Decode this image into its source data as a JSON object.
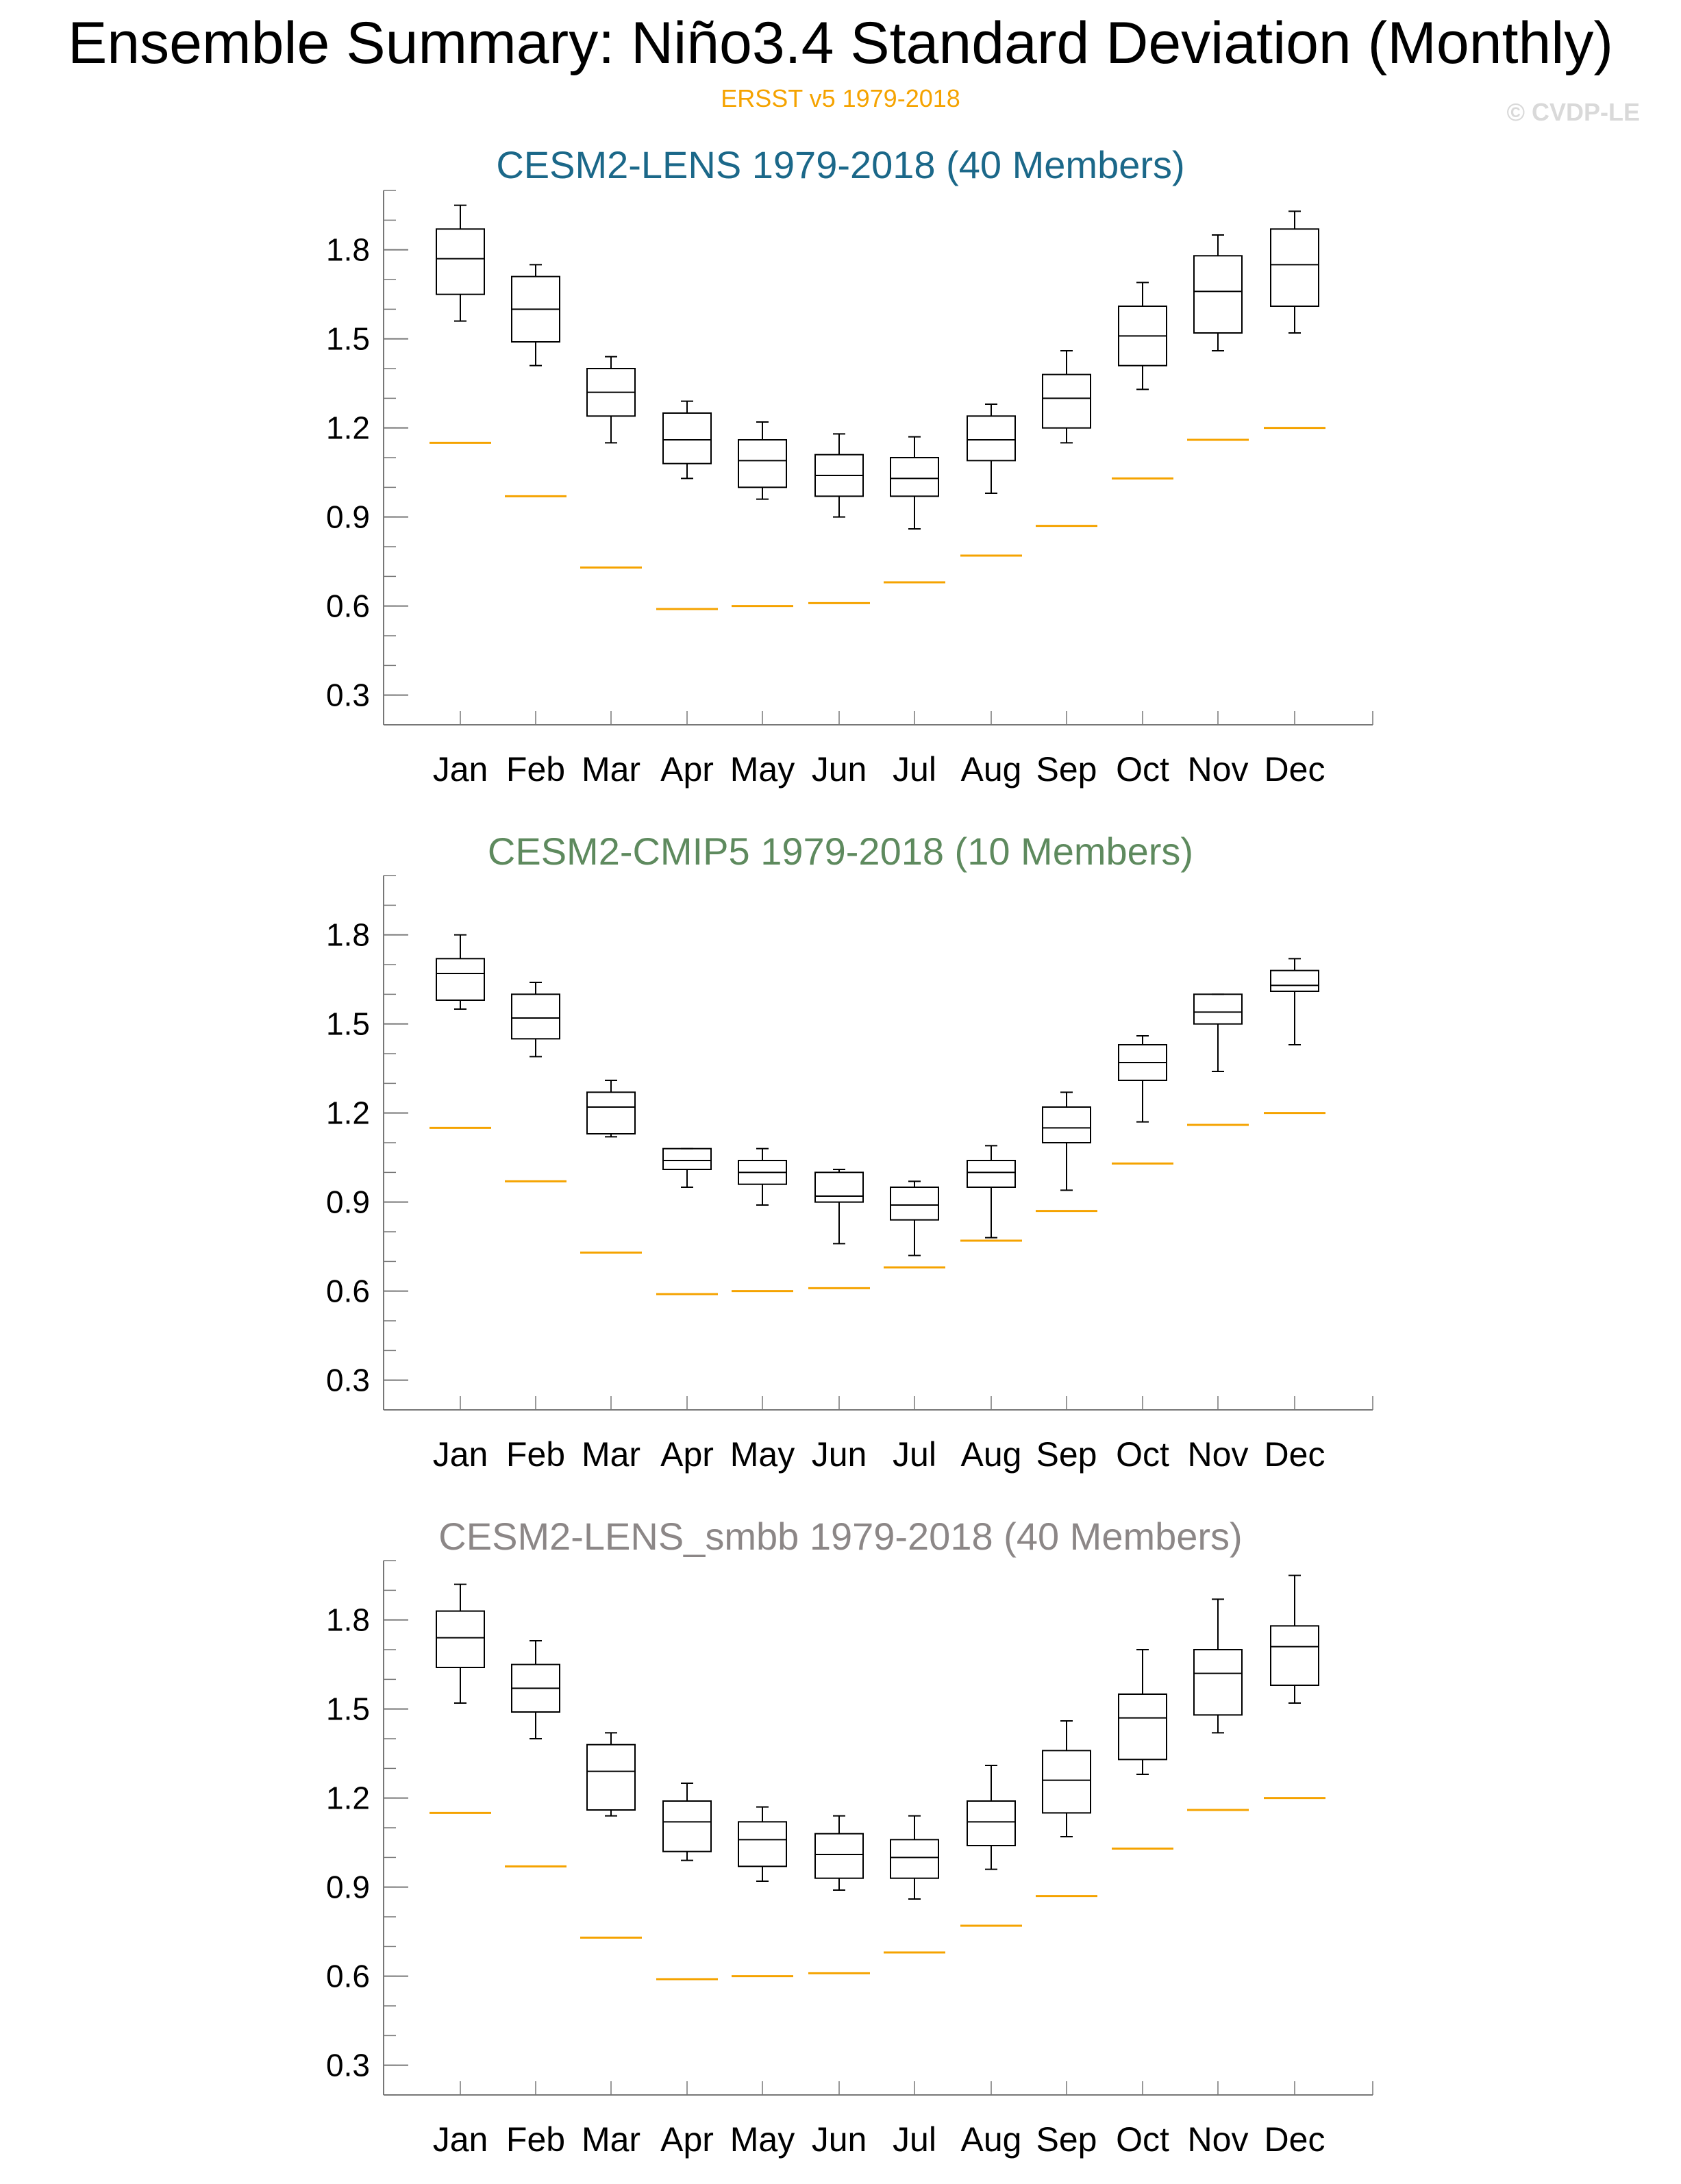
{
  "title": "Ensemble Summary: Niño3.4 Standard Deviation (Monthly)",
  "observation_label": "ERSST v5 1979-2018",
  "credit": "© CVDP-LE",
  "colors": {
    "observation": "#f5a300",
    "box": "#000000",
    "axis": "#777777",
    "credit": "#d9d9d9"
  },
  "chart_data": [
    {
      "type": "boxplot",
      "title": "CESM2-LENS 1979-2018 (40 Members)",
      "title_color": "#1b6889",
      "categories": [
        "Jan",
        "Feb",
        "Mar",
        "Apr",
        "May",
        "Jun",
        "Jul",
        "Aug",
        "Sep",
        "Oct",
        "Nov",
        "Dec"
      ],
      "ylim": [
        0.2,
        2.0
      ],
      "yticks": [
        "0.3",
        "0.6",
        "0.9",
        "1.2",
        "1.5",
        "1.8"
      ],
      "boxes": [
        {
          "min": 1.56,
          "q1": 1.65,
          "median": 1.77,
          "q3": 1.87,
          "max": 1.95
        },
        {
          "min": 1.41,
          "q1": 1.49,
          "median": 1.6,
          "q3": 1.71,
          "max": 1.75
        },
        {
          "min": 1.15,
          "q1": 1.24,
          "median": 1.32,
          "q3": 1.4,
          "max": 1.44
        },
        {
          "min": 1.03,
          "q1": 1.08,
          "median": 1.16,
          "q3": 1.25,
          "max": 1.29
        },
        {
          "min": 0.96,
          "q1": 1.0,
          "median": 1.09,
          "q3": 1.16,
          "max": 1.22
        },
        {
          "min": 0.9,
          "q1": 0.97,
          "median": 1.04,
          "q3": 1.11,
          "max": 1.18
        },
        {
          "min": 0.86,
          "q1": 0.97,
          "median": 1.03,
          "q3": 1.1,
          "max": 1.17
        },
        {
          "min": 0.98,
          "q1": 1.09,
          "median": 1.16,
          "q3": 1.24,
          "max": 1.28
        },
        {
          "min": 1.15,
          "q1": 1.2,
          "median": 1.3,
          "q3": 1.38,
          "max": 1.46
        },
        {
          "min": 1.33,
          "q1": 1.41,
          "median": 1.51,
          "q3": 1.61,
          "max": 1.69
        },
        {
          "min": 1.46,
          "q1": 1.52,
          "median": 1.66,
          "q3": 1.78,
          "max": 1.85
        },
        {
          "min": 1.52,
          "q1": 1.61,
          "median": 1.75,
          "q3": 1.87,
          "max": 1.93
        }
      ],
      "observed": [
        1.15,
        0.97,
        0.73,
        0.59,
        0.6,
        0.61,
        0.68,
        0.77,
        0.87,
        1.03,
        1.16,
        1.2
      ]
    },
    {
      "type": "boxplot",
      "title": "CESM2-CMIP5 1979-2018 (10 Members)",
      "title_color": "#5e8a5e",
      "categories": [
        "Jan",
        "Feb",
        "Mar",
        "Apr",
        "May",
        "Jun",
        "Jul",
        "Aug",
        "Sep",
        "Oct",
        "Nov",
        "Dec"
      ],
      "ylim": [
        0.2,
        2.0
      ],
      "yticks": [
        "0.3",
        "0.6",
        "0.9",
        "1.2",
        "1.5",
        "1.8"
      ],
      "boxes": [
        {
          "min": 1.55,
          "q1": 1.58,
          "median": 1.67,
          "q3": 1.72,
          "max": 1.8
        },
        {
          "min": 1.39,
          "q1": 1.45,
          "median": 1.52,
          "q3": 1.6,
          "max": 1.64
        },
        {
          "min": 1.12,
          "q1": 1.13,
          "median": 1.22,
          "q3": 1.27,
          "max": 1.31
        },
        {
          "min": 0.95,
          "q1": 1.01,
          "median": 1.04,
          "q3": 1.08,
          "max": 1.08
        },
        {
          "min": 0.89,
          "q1": 0.96,
          "median": 1.0,
          "q3": 1.04,
          "max": 1.08
        },
        {
          "min": 0.76,
          "q1": 0.9,
          "median": 0.92,
          "q3": 1.0,
          "max": 1.01
        },
        {
          "min": 0.72,
          "q1": 0.84,
          "median": 0.89,
          "q3": 0.95,
          "max": 0.97
        },
        {
          "min": 0.78,
          "q1": 0.95,
          "median": 1.0,
          "q3": 1.04,
          "max": 1.09
        },
        {
          "min": 0.94,
          "q1": 1.1,
          "median": 1.15,
          "q3": 1.22,
          "max": 1.27
        },
        {
          "min": 1.17,
          "q1": 1.31,
          "median": 1.37,
          "q3": 1.43,
          "max": 1.46
        },
        {
          "min": 1.34,
          "q1": 1.5,
          "median": 1.54,
          "q3": 1.6,
          "max": 1.6
        },
        {
          "min": 1.43,
          "q1": 1.61,
          "median": 1.63,
          "q3": 1.68,
          "max": 1.72
        }
      ],
      "observed": [
        1.15,
        0.97,
        0.73,
        0.59,
        0.6,
        0.61,
        0.68,
        0.77,
        0.87,
        1.03,
        1.16,
        1.2
      ]
    },
    {
      "type": "boxplot",
      "title": "CESM2-LENS_smbb 1979-2018 (40 Members)",
      "title_color": "#8c8787",
      "categories": [
        "Jan",
        "Feb",
        "Mar",
        "Apr",
        "May",
        "Jun",
        "Jul",
        "Aug",
        "Sep",
        "Oct",
        "Nov",
        "Dec"
      ],
      "ylim": [
        0.2,
        2.0
      ],
      "yticks": [
        "0.3",
        "0.6",
        "0.9",
        "1.2",
        "1.5",
        "1.8"
      ],
      "boxes": [
        {
          "min": 1.52,
          "q1": 1.64,
          "median": 1.74,
          "q3": 1.83,
          "max": 1.92
        },
        {
          "min": 1.4,
          "q1": 1.49,
          "median": 1.57,
          "q3": 1.65,
          "max": 1.73
        },
        {
          "min": 1.14,
          "q1": 1.16,
          "median": 1.29,
          "q3": 1.38,
          "max": 1.42
        },
        {
          "min": 0.99,
          "q1": 1.02,
          "median": 1.12,
          "q3": 1.19,
          "max": 1.25
        },
        {
          "min": 0.92,
          "q1": 0.97,
          "median": 1.06,
          "q3": 1.12,
          "max": 1.17
        },
        {
          "min": 0.89,
          "q1": 0.93,
          "median": 1.01,
          "q3": 1.08,
          "max": 1.14
        },
        {
          "min": 0.86,
          "q1": 0.93,
          "median": 1.0,
          "q3": 1.06,
          "max": 1.14
        },
        {
          "min": 0.96,
          "q1": 1.04,
          "median": 1.12,
          "q3": 1.19,
          "max": 1.31
        },
        {
          "min": 1.07,
          "q1": 1.15,
          "median": 1.26,
          "q3": 1.36,
          "max": 1.46
        },
        {
          "min": 1.28,
          "q1": 1.33,
          "median": 1.47,
          "q3": 1.55,
          "max": 1.7
        },
        {
          "min": 1.42,
          "q1": 1.48,
          "median": 1.62,
          "q3": 1.7,
          "max": 1.87
        },
        {
          "min": 1.52,
          "q1": 1.58,
          "median": 1.71,
          "q3": 1.78,
          "max": 1.95
        }
      ],
      "observed": [
        1.15,
        0.97,
        0.73,
        0.59,
        0.6,
        0.61,
        0.68,
        0.77,
        0.87,
        1.03,
        1.16,
        1.2
      ]
    }
  ]
}
